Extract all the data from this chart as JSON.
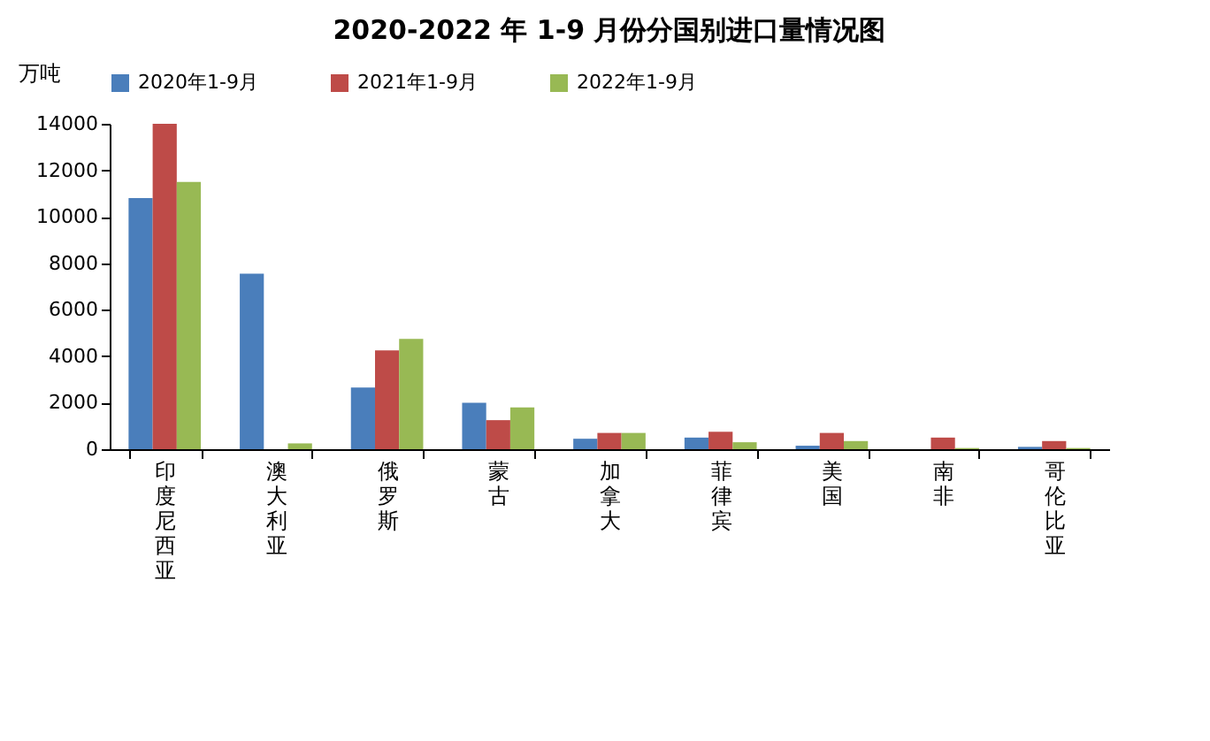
{
  "chart_data": {
    "type": "bar",
    "title": "2020-2022 年 1-9 月份分国别进口量情况图",
    "ylabel": "万吨",
    "categories": [
      "印度尼西亚",
      "澳大利亚",
      "俄罗斯",
      "蒙古",
      "加拿大",
      "菲律宾",
      "美国",
      "南非",
      "哥伦比亚"
    ],
    "series": [
      {
        "name": "2020年1-9月",
        "color": "#4a7ebb",
        "values": [
          10800,
          7550,
          2650,
          2000,
          450,
          500,
          150,
          0,
          100
        ]
      },
      {
        "name": "2021年1-9月",
        "color": "#be4b48",
        "values": [
          14000,
          0,
          4250,
          1250,
          700,
          750,
          700,
          500,
          350
        ]
      },
      {
        "name": "2022年1-9月",
        "color": "#98b954",
        "values": [
          11500,
          250,
          4750,
          1800,
          700,
          300,
          350,
          50,
          50
        ]
      }
    ],
    "ylim": [
      0,
      14000
    ],
    "yticks": [
      0,
      2000,
      4000,
      6000,
      8000,
      10000,
      12000,
      14000
    ],
    "grid": false,
    "legend": "top"
  }
}
